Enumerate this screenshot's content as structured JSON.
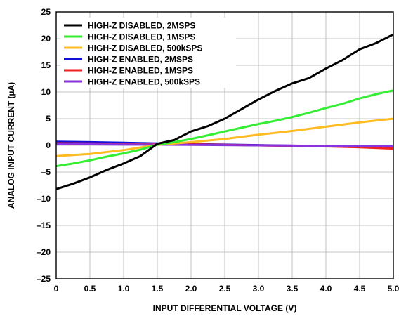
{
  "chart_data": {
    "type": "line",
    "title": "",
    "xlabel": "INPUT DIFFERENTIAL VOLTAGE (V)",
    "ylabel": "ANALOG INPUT CURRENT (µA)",
    "xlim": [
      0,
      5.0
    ],
    "ylim": [
      -25,
      25
    ],
    "x_ticks": [
      0,
      0.5,
      1.0,
      1.5,
      2.0,
      2.5,
      3.0,
      3.5,
      4.0,
      4.5,
      5.0
    ],
    "x_tick_labels": [
      "0",
      "0.5",
      "1.0",
      "1.5",
      "2.0",
      "2.5",
      "3.0",
      "3.5",
      "4.0",
      "4.5",
      "5.0"
    ],
    "y_ticks": [
      25,
      20,
      15,
      10,
      5,
      0,
      -5,
      -10,
      -15,
      -20,
      -25
    ],
    "y_tick_labels": [
      "25",
      "20",
      "15",
      "10",
      "5",
      "0",
      "–5",
      "–10",
      "–15",
      "–20",
      "–25"
    ],
    "grid": true,
    "legend_position": "top-left",
    "series": [
      {
        "name": "HIGH-Z DISABLED, 2MSPS",
        "color": "#000000",
        "x": [
          0,
          0.25,
          0.5,
          0.75,
          1.0,
          1.25,
          1.5,
          1.75,
          2.0,
          2.25,
          2.5,
          2.75,
          3.0,
          3.25,
          3.5,
          3.75,
          4.0,
          4.25,
          4.5,
          4.75,
          5.0
        ],
        "y": [
          -8.2,
          -7.2,
          -6.0,
          -4.6,
          -3.4,
          -2.0,
          0.3,
          1.0,
          2.6,
          3.6,
          5.0,
          6.8,
          8.6,
          10.2,
          11.6,
          12.6,
          14.4,
          16.0,
          18.0,
          19.2,
          20.8
        ]
      },
      {
        "name": "HIGH-Z DISABLED, 1MSPS",
        "color": "#33ee33",
        "x": [
          0,
          0.25,
          0.5,
          0.75,
          1.0,
          1.25,
          1.5,
          1.75,
          2.0,
          2.25,
          2.5,
          2.75,
          3.0,
          3.25,
          3.5,
          3.75,
          4.0,
          4.25,
          4.5,
          4.75,
          5.0
        ],
        "y": [
          -3.9,
          -3.4,
          -2.8,
          -2.1,
          -1.5,
          -0.8,
          0.1,
          0.6,
          1.2,
          1.9,
          2.6,
          3.3,
          4.0,
          4.6,
          5.3,
          6.1,
          7.0,
          7.8,
          8.8,
          9.6,
          10.3
        ]
      },
      {
        "name": "HIGH-Z DISABLED, 500kSPS",
        "color": "#ffbb22",
        "x": [
          0,
          0.5,
          1.0,
          1.5,
          2.0,
          2.5,
          3.0,
          3.5,
          4.0,
          4.5,
          5.0
        ],
        "y": [
          -2.0,
          -1.6,
          -0.9,
          0.1,
          0.6,
          1.2,
          2.0,
          2.7,
          3.5,
          4.3,
          5.0
        ]
      },
      {
        "name": "HIGH-Z ENABLED, 2MSPS",
        "color": "#1111dd",
        "x": [
          0,
          0.5,
          1.0,
          1.5,
          2.0,
          2.5,
          3.0,
          3.5,
          4.0,
          4.5,
          5.0
        ],
        "y": [
          0.7,
          0.6,
          0.5,
          0.35,
          0.25,
          0.15,
          0.05,
          -0.05,
          -0.15,
          -0.25,
          -0.35
        ]
      },
      {
        "name": "HIGH-Z ENABLED, 1MSPS",
        "color": "#ee2222",
        "x": [
          0,
          0.5,
          1.0,
          1.5,
          2.0,
          2.5,
          3.0,
          3.5,
          4.0,
          4.5,
          5.0
        ],
        "y": [
          0.4,
          0.35,
          0.3,
          0.25,
          0.2,
          0.1,
          0.0,
          -0.1,
          -0.2,
          -0.35,
          -0.6
        ]
      },
      {
        "name": "HIGH-Z ENABLED, 500kSPS",
        "color": "#8833dd",
        "x": [
          0,
          0.5,
          1.0,
          1.5,
          2.0,
          2.5,
          3.0,
          3.5,
          4.0,
          4.5,
          5.0
        ],
        "y": [
          0.2,
          0.2,
          0.15,
          0.15,
          0.1,
          0.05,
          0.0,
          -0.05,
          -0.1,
          -0.15,
          -0.2
        ]
      }
    ]
  }
}
